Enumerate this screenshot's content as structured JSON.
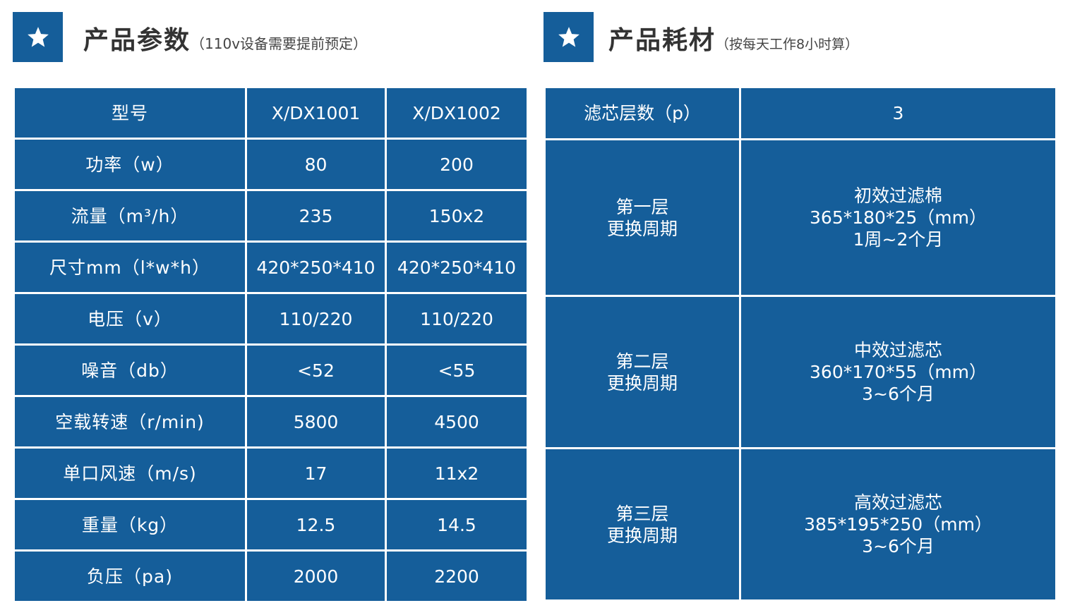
{
  "left": {
    "title": "产品参数",
    "subtitle": "（110v设备需要提前预定）",
    "columns": [
      "型号",
      "X/DX1001",
      "X/DX1002"
    ],
    "rows": [
      {
        "label": "功率（w）",
        "v1": "80",
        "v2": "200"
      },
      {
        "label": "流量（m³/h）",
        "v1": "235",
        "v2": "150x2"
      },
      {
        "label": "尺寸mm（l*w*h）",
        "v1": "420*250*410",
        "v2": "420*250*410"
      },
      {
        "label": "电压（v）",
        "v1": "110/220",
        "v2": "110/220"
      },
      {
        "label": "噪音（db）",
        "v1": "<52",
        "v2": "<55"
      },
      {
        "label": "空载转速（r/min)",
        "v1": "5800",
        "v2": "4500"
      },
      {
        "label": "单口风速（m/s)",
        "v1": "17",
        "v2": "11x2"
      },
      {
        "label": "重量（kg）",
        "v1": "12.5",
        "v2": "14.5"
      },
      {
        "label": "负压（pa)",
        "v1": "2000",
        "v2": "2200"
      }
    ]
  },
  "right": {
    "title": "产品耗材",
    "subtitle": "（按每天工作8小时算）",
    "header": {
      "label": "滤芯层数（p）",
      "value": "3"
    },
    "layers": [
      {
        "label_1": "第一层",
        "label_2": "更换周期",
        "name": "初效过滤棉",
        "size": "365*180*25（mm）",
        "period": "1周~2个月"
      },
      {
        "label_1": "第二层",
        "label_2": "更换周期",
        "name": "中效过滤芯",
        "size": "360*170*55（mm）",
        "period": "3~6个月"
      },
      {
        "label_1": "第三层",
        "label_2": "更换周期",
        "name": "高效过滤芯",
        "size": "385*195*250（mm）",
        "period": "3~6个月"
      }
    ]
  },
  "colors": {
    "accent": "#155e9a",
    "text_on_accent": "#ffffff",
    "title": "#333333"
  },
  "icons": {
    "header_icon": "star-icon"
  }
}
